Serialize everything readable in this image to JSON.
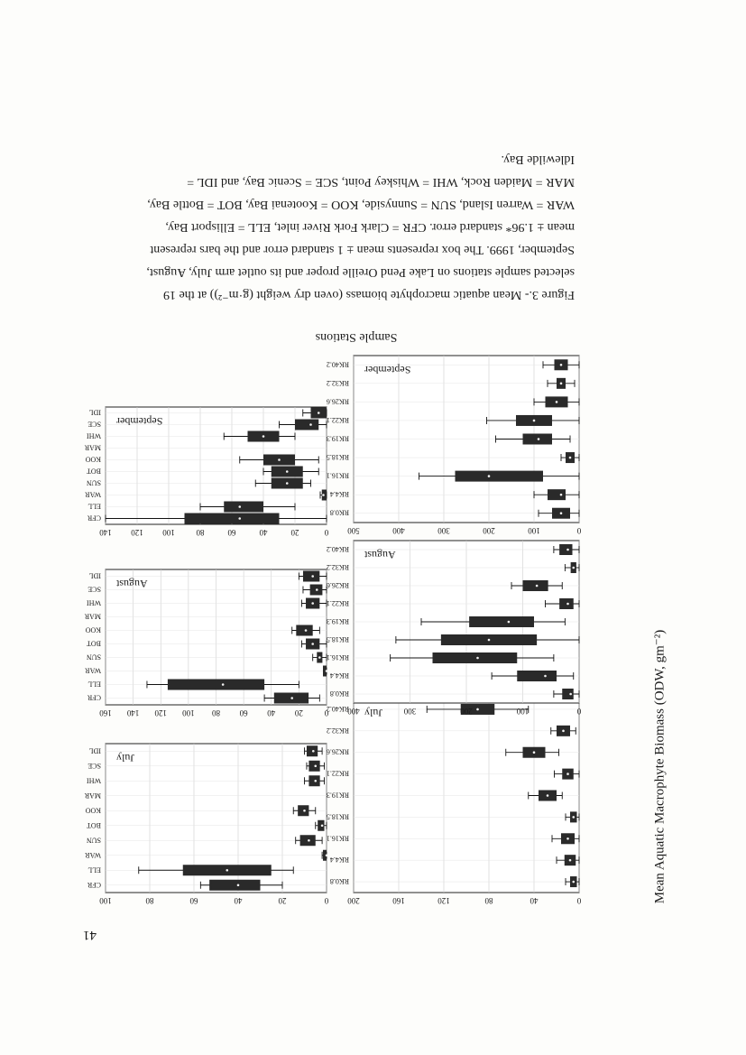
{
  "page_number": "41",
  "figure_caption": [
    "Figure 3.- Mean aquatic macrophyte biomass (oven dry weight (g·m⁻²)) at the 19",
    "selected sample stations on Lake Pend Oreille proper and its outlet arm July, August,",
    "September, 1999.  The box represents mean ± 1 standard error and the bars represent",
    "mean ± 1.96* standard error.  CFR = Clark Fork River inlet, ELL = Ellisport Bay,",
    "WAR = Warren Island, SUN = Sunnyside, KOO = Kootenai Bay, BOT = Bottle Bay,",
    "MAR = Maiden Rock, WHI = Whiskey Point, SCE = Scenic Bay, and IDL =",
    "Idlewilde Bay."
  ],
  "yaxis_title": "Mean Aquatic Macrophyte Biomass (ODW, gm⁻²)",
  "xaxis_title": "Sample Stations",
  "chart_data": [
    {
      "type": "box",
      "month": "July",
      "group": "river",
      "stations": [
        "RK0.8",
        "RK4.4",
        "RK16.1",
        "RK18.5",
        "RK19.3",
        "RK22.1",
        "RK26.6",
        "RK32.2",
        "RK40.2"
      ],
      "ylim": [
        0,
        200
      ],
      "yticks": [
        0,
        40,
        80,
        120,
        160,
        200
      ],
      "mean": [
        5,
        8,
        10,
        5,
        28,
        10,
        40,
        14,
        90
      ],
      "se_low": [
        2,
        3,
        4,
        2,
        20,
        5,
        30,
        8,
        75
      ],
      "se_high": [
        8,
        13,
        16,
        8,
        36,
        15,
        50,
        20,
        105
      ],
      "ci_low": [
        0,
        0,
        0,
        0,
        15,
        0,
        18,
        3,
        45
      ],
      "ci_high": [
        12,
        20,
        24,
        12,
        45,
        22,
        65,
        25,
        135
      ]
    },
    {
      "type": "box",
      "month": "August",
      "group": "river",
      "stations": [
        "RK0.8",
        "RK4.4",
        "RK16.1",
        "RK18.5",
        "RK19.3",
        "RK22.1",
        "RK26.6",
        "RK32.2",
        "RK40.2"
      ],
      "ylim": [
        0,
        400
      ],
      "yticks": [
        0,
        100,
        200,
        300,
        400
      ],
      "mean": [
        15,
        60,
        180,
        160,
        125,
        20,
        75,
        10,
        20
      ],
      "se_low": [
        10,
        40,
        110,
        75,
        80,
        10,
        55,
        5,
        12
      ],
      "se_high": [
        30,
        110,
        260,
        245,
        195,
        35,
        100,
        15,
        35
      ],
      "ci_low": [
        0,
        10,
        45,
        0,
        25,
        0,
        30,
        0,
        0
      ],
      "ci_high": [
        45,
        155,
        335,
        325,
        280,
        60,
        120,
        25,
        45
      ]
    },
    {
      "type": "box",
      "month": "September",
      "group": "river",
      "stations": [
        "RK0.8",
        "RK4.4",
        "RK16.1",
        "RK18.5",
        "RK19.3",
        "RK22.1",
        "RK26.6",
        "RK32.2",
        "RK40.2"
      ],
      "ylim": [
        0,
        500
      ],
      "yticks": [
        0,
        100,
        200,
        300,
        400,
        500
      ],
      "mean": [
        40,
        40,
        200,
        20,
        90,
        100,
        50,
        40,
        40
      ],
      "se_low": [
        20,
        30,
        80,
        10,
        60,
        60,
        25,
        30,
        25
      ],
      "se_high": [
        60,
        70,
        275,
        30,
        125,
        140,
        75,
        50,
        55
      ],
      "ci_low": [
        0,
        0,
        0,
        0,
        20,
        0,
        0,
        10,
        0
      ],
      "ci_high": [
        90,
        100,
        355,
        40,
        185,
        205,
        100,
        70,
        80
      ]
    },
    {
      "type": "box",
      "month": "July",
      "group": "lake",
      "stations": [
        "CFR",
        "ELL",
        "WAR",
        "SUN",
        "BOT",
        "KOO",
        "MAR",
        "WHI",
        "SCE",
        "IDL"
      ],
      "ylim": [
        0,
        100
      ],
      "yticks": [
        0,
        20,
        40,
        60,
        80,
        100
      ],
      "mean": [
        40,
        45,
        0,
        8,
        2,
        10,
        null,
        5,
        5,
        6
      ],
      "se_low": [
        30,
        25,
        0,
        5,
        1,
        8,
        null,
        3,
        3,
        4
      ],
      "se_high": [
        53,
        65,
        1,
        12,
        4,
        13,
        null,
        8,
        8,
        9
      ],
      "ci_low": [
        20,
        15,
        0,
        2,
        0,
        5,
        null,
        1,
        1,
        2
      ],
      "ci_high": [
        57,
        85,
        2,
        14,
        5,
        15,
        null,
        10,
        9,
        10
      ]
    },
    {
      "type": "box",
      "month": "August",
      "group": "lake",
      "stations": [
        "CFR",
        "ELL",
        "WAR",
        "SUN",
        "BOT",
        "KOO",
        "MAR",
        "WHI",
        "SCE",
        "IDL"
      ],
      "ylim": [
        0,
        160
      ],
      "yticks": [
        0,
        20,
        40,
        60,
        80,
        100,
        120,
        140,
        160
      ],
      "mean": [
        25,
        75,
        0,
        5,
        10,
        15,
        null,
        10,
        7,
        10
      ],
      "se_low": [
        13,
        45,
        0,
        3,
        5,
        10,
        null,
        5,
        3,
        5
      ],
      "se_high": [
        38,
        115,
        1,
        7,
        15,
        22,
        null,
        15,
        12,
        17
      ],
      "ci_low": [
        5,
        20,
        0,
        0,
        0,
        5,
        null,
        0,
        0,
        0
      ],
      "ci_high": [
        45,
        130,
        2,
        10,
        18,
        25,
        null,
        18,
        17,
        20
      ]
    },
    {
      "type": "box",
      "month": "September",
      "group": "lake",
      "stations": [
        "CFR",
        "ELL",
        "WAR",
        "SUN",
        "BOT",
        "KOO",
        "MAR",
        "WHI",
        "SCE",
        "IDL"
      ],
      "ylim": [
        0,
        140
      ],
      "yticks": [
        0,
        20,
        40,
        60,
        80,
        100,
        120,
        140
      ],
      "mean": [
        55,
        55,
        2,
        25,
        25,
        30,
        null,
        40,
        10,
        5
      ],
      "se_low": [
        30,
        40,
        0,
        15,
        15,
        20,
        null,
        30,
        5,
        0
      ],
      "se_high": [
        90,
        65,
        3,
        35,
        35,
        40,
        null,
        50,
        20,
        10
      ],
      "ci_low": [
        0,
        20,
        0,
        10,
        5,
        5,
        null,
        20,
        0,
        0
      ],
      "ci_high": [
        140,
        80,
        4,
        45,
        40,
        55,
        null,
        65,
        30,
        15
      ]
    }
  ]
}
